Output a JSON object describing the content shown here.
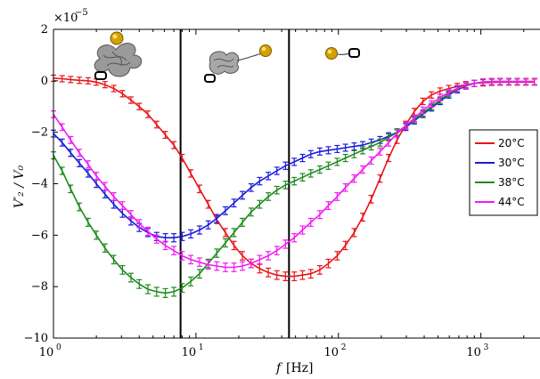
{
  "chart_data": {
    "type": "line",
    "xlabel_sym": "f",
    "xlabel_unit": "[Hz]",
    "ylabel": "V′₂ / V₀",
    "ymultiplier": "×10",
    "ymultiplier_exp": "−5",
    "x_scale": "log",
    "xlim": [
      1,
      2600
    ],
    "ylim": [
      -10,
      2
    ],
    "yticks": [
      -10,
      -8,
      -6,
      -4,
      -2,
      0,
      2
    ],
    "yticklabels": [
      "−10",
      "−8",
      "−6",
      "−4",
      "−2",
      "0",
      "2"
    ],
    "xticks": [
      1,
      10,
      100,
      1000
    ],
    "xtick_bases": [
      "10",
      "10",
      "10",
      "10"
    ],
    "xtick_exps": [
      "0",
      "1",
      "2",
      "3"
    ],
    "grid": false,
    "legend_position": "right",
    "vertical_lines_x": [
      7.8,
      45
    ],
    "colors": {
      "20°C": "#e8141b",
      "30°C": "#1a1adc",
      "38°C": "#1e8a1e",
      "44°C": "#f21af2"
    },
    "series": [
      {
        "name": "20°C",
        "color": "#e8141b",
        "x": [
          1.0,
          1.15,
          1.32,
          1.52,
          1.75,
          2.0,
          2.3,
          2.65,
          3.05,
          3.5,
          4.0,
          4.6,
          5.3,
          6.1,
          7.0,
          8.0,
          9.2,
          10.6,
          12.2,
          14.0,
          16.1,
          18.5,
          21.2,
          24.4,
          28.0,
          32.2,
          37.0,
          42.5,
          49.0,
          56.0,
          64.0,
          74.0,
          85.0,
          98.0,
          112.0,
          129.0,
          148.0,
          170.0,
          196.0,
          225.0,
          258.0,
          297.0,
          341.0,
          392.0,
          450.0,
          517.0,
          594.0,
          683.0,
          784.0,
          900.0,
          1035.0,
          1190.0,
          1365.0,
          1570.0,
          1800.0,
          2070.0,
          2380.0
        ],
        "y": [
          0.1,
          0.08,
          0.05,
          0.02,
          0.0,
          -0.05,
          -0.15,
          -0.3,
          -0.5,
          -0.75,
          -1.0,
          -1.3,
          -1.7,
          -2.1,
          -2.5,
          -3.0,
          -3.6,
          -4.2,
          -4.8,
          -5.4,
          -5.9,
          -6.4,
          -6.8,
          -7.1,
          -7.3,
          -7.45,
          -7.55,
          -7.6,
          -7.6,
          -7.55,
          -7.5,
          -7.35,
          -7.1,
          -6.8,
          -6.4,
          -5.9,
          -5.3,
          -4.6,
          -3.8,
          -3.0,
          -2.3,
          -1.7,
          -1.2,
          -0.8,
          -0.55,
          -0.4,
          -0.3,
          -0.22,
          -0.15,
          -0.1,
          -0.08,
          -0.06,
          -0.05,
          -0.05,
          -0.05,
          -0.05,
          -0.05
        ]
      },
      {
        "name": "30°C",
        "color": "#1a1adc",
        "x": [
          1.0,
          1.15,
          1.32,
          1.52,
          1.75,
          2.0,
          2.3,
          2.65,
          3.05,
          3.5,
          4.0,
          4.6,
          5.3,
          6.1,
          7.0,
          8.0,
          9.2,
          10.6,
          12.2,
          14.0,
          16.1,
          18.5,
          21.2,
          24.4,
          28.0,
          32.2,
          37.0,
          42.5,
          49.0,
          56.0,
          64.0,
          74.0,
          85.0,
          98.0,
          112.0,
          129.0,
          148.0,
          170.0,
          196.0,
          225.0,
          258.0,
          297.0,
          341.0,
          392.0,
          450.0,
          517.0,
          594.0,
          683.0,
          784.0,
          900.0,
          1035.0,
          1190.0,
          1365.0,
          1570.0,
          1800.0,
          2070.0,
          2380.0
        ],
        "y": [
          -2.05,
          -2.4,
          -2.8,
          -3.2,
          -3.6,
          -4.0,
          -4.4,
          -4.8,
          -5.15,
          -5.45,
          -5.7,
          -5.9,
          -6.05,
          -6.1,
          -6.1,
          -6.05,
          -5.95,
          -5.8,
          -5.6,
          -5.35,
          -5.05,
          -4.75,
          -4.45,
          -4.15,
          -3.9,
          -3.7,
          -3.5,
          -3.3,
          -3.15,
          -3.0,
          -2.85,
          -2.75,
          -2.7,
          -2.65,
          -2.6,
          -2.55,
          -2.5,
          -2.4,
          -2.3,
          -2.15,
          -2.0,
          -1.8,
          -1.55,
          -1.3,
          -1.05,
          -0.8,
          -0.55,
          -0.35,
          -0.2,
          -0.1,
          -0.05,
          -0.03,
          -0.03,
          -0.03,
          -0.03,
          -0.03,
          -0.03
        ]
      },
      {
        "name": "38°C",
        "color": "#1e8a1e",
        "x": [
          1.0,
          1.15,
          1.32,
          1.52,
          1.75,
          2.0,
          2.3,
          2.65,
          3.05,
          3.5,
          4.0,
          4.6,
          5.3,
          6.1,
          7.0,
          8.0,
          9.2,
          10.6,
          12.2,
          14.0,
          16.1,
          18.5,
          21.2,
          24.4,
          28.0,
          32.2,
          37.0,
          42.5,
          49.0,
          56.0,
          64.0,
          74.0,
          85.0,
          98.0,
          112.0,
          129.0,
          148.0,
          170.0,
          196.0,
          225.0,
          258.0,
          297.0,
          341.0,
          392.0,
          450.0,
          517.0,
          594.0,
          683.0,
          784.0,
          900.0,
          1035.0,
          1190.0,
          1365.0,
          1570.0,
          1800.0,
          2070.0,
          2380.0
        ],
        "y": [
          -2.9,
          -3.5,
          -4.2,
          -4.9,
          -5.5,
          -6.0,
          -6.5,
          -6.95,
          -7.35,
          -7.65,
          -7.9,
          -8.1,
          -8.2,
          -8.25,
          -8.2,
          -8.05,
          -7.8,
          -7.5,
          -7.1,
          -6.7,
          -6.3,
          -5.9,
          -5.5,
          -5.1,
          -4.8,
          -4.5,
          -4.25,
          -4.05,
          -3.9,
          -3.75,
          -3.6,
          -3.45,
          -3.3,
          -3.15,
          -3.0,
          -2.85,
          -2.7,
          -2.55,
          -2.4,
          -2.2,
          -2.0,
          -1.75,
          -1.5,
          -1.25,
          -1.0,
          -0.75,
          -0.5,
          -0.32,
          -0.18,
          -0.1,
          -0.05,
          -0.03,
          -0.03,
          -0.03,
          -0.03,
          -0.03,
          -0.03
        ]
      },
      {
        "name": "44°C",
        "color": "#f21af2",
        "x": [
          1.0,
          1.15,
          1.32,
          1.52,
          1.75,
          2.0,
          2.3,
          2.65,
          3.05,
          3.5,
          4.0,
          4.6,
          5.3,
          6.1,
          7.0,
          8.0,
          9.2,
          10.6,
          12.2,
          14.0,
          16.1,
          18.5,
          21.2,
          24.4,
          28.0,
          32.2,
          37.0,
          42.5,
          49.0,
          56.0,
          64.0,
          74.0,
          85.0,
          98.0,
          112.0,
          129.0,
          148.0,
          170.0,
          196.0,
          225.0,
          258.0,
          297.0,
          341.0,
          392.0,
          450.0,
          517.0,
          594.0,
          683.0,
          784.0,
          900.0,
          1035.0,
          1190.0,
          1365.0,
          1570.0,
          1800.0,
          2070.0,
          2380.0
        ],
        "y": [
          -1.3,
          -1.8,
          -2.3,
          -2.8,
          -3.25,
          -3.7,
          -4.1,
          -4.5,
          -4.85,
          -5.2,
          -5.55,
          -5.85,
          -6.15,
          -6.4,
          -6.6,
          -6.8,
          -6.95,
          -7.05,
          -7.15,
          -7.2,
          -7.25,
          -7.25,
          -7.2,
          -7.1,
          -6.95,
          -6.8,
          -6.6,
          -6.35,
          -6.1,
          -5.8,
          -5.5,
          -5.2,
          -4.85,
          -4.5,
          -4.15,
          -3.8,
          -3.45,
          -3.1,
          -2.75,
          -2.4,
          -2.05,
          -1.75,
          -1.45,
          -1.15,
          -0.9,
          -0.65,
          -0.45,
          -0.3,
          -0.18,
          -0.1,
          -0.05,
          -0.03,
          -0.03,
          -0.03,
          -0.03,
          -0.03,
          -0.03
        ]
      }
    ]
  }
}
